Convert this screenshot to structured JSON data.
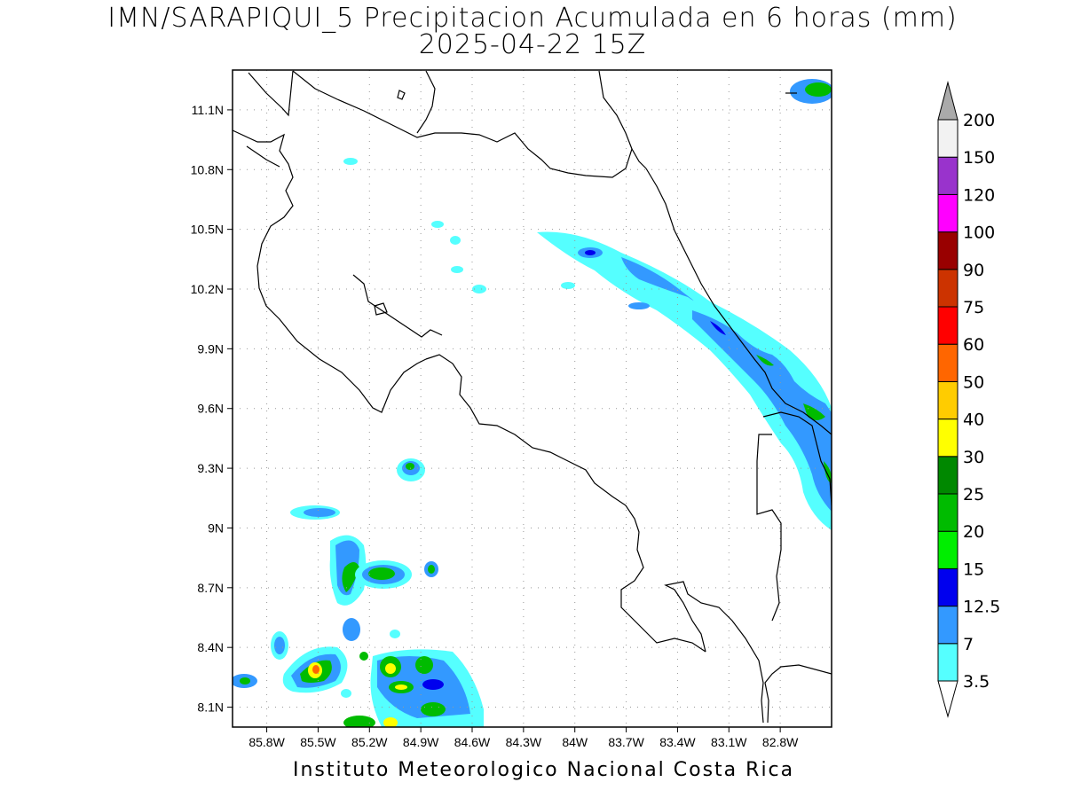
{
  "title": {
    "line1": "IMN/SARAPIQUI_5 Precipitacion Acumulada en 6 horas (mm)",
    "line2": "2025-04-22 15Z"
  },
  "footer": "Instituto Meteorologico Nacional Costa Rica",
  "map": {
    "lon_range": [
      -86.0,
      -82.5
    ],
    "lat_range": [
      8.0,
      11.3
    ],
    "x_ticks": [
      "85.8W",
      "85.5W",
      "85.2W",
      "84.9W",
      "84.6W",
      "84.3W",
      "84W",
      "83.7W",
      "83.4W",
      "83.1W",
      "82.8W"
    ],
    "y_ticks": [
      "11.1N",
      "10.8N",
      "10.5N",
      "10.2N",
      "9.9N",
      "9.6N",
      "9.3N",
      "9N",
      "8.7N",
      "8.4N",
      "8.1N"
    ],
    "grid": true
  },
  "colorbar": {
    "unit": "mm",
    "levels": [
      {
        "label": "3.5",
        "color": "#55ffff"
      },
      {
        "label": "7",
        "color": "#3399ff"
      },
      {
        "label": "12.5",
        "color": "#0000ee"
      },
      {
        "label": "15",
        "color": "#00ee00"
      },
      {
        "label": "20",
        "color": "#00bb00"
      },
      {
        "label": "25",
        "color": "#008800"
      },
      {
        "label": "30",
        "color": "#ffff00"
      },
      {
        "label": "40",
        "color": "#ffcc00"
      },
      {
        "label": "50",
        "color": "#ff6600"
      },
      {
        "label": "60",
        "color": "#ff0000"
      },
      {
        "label": "75",
        "color": "#cc3300"
      },
      {
        "label": "90",
        "color": "#990000"
      },
      {
        "label": "100",
        "color": "#ff00ff"
      },
      {
        "label": "120",
        "color": "#9933cc"
      },
      {
        "label": "150",
        "color": "#f2f2f2"
      },
      {
        "label": "200",
        "color": "#aaaaaa"
      }
    ]
  }
}
